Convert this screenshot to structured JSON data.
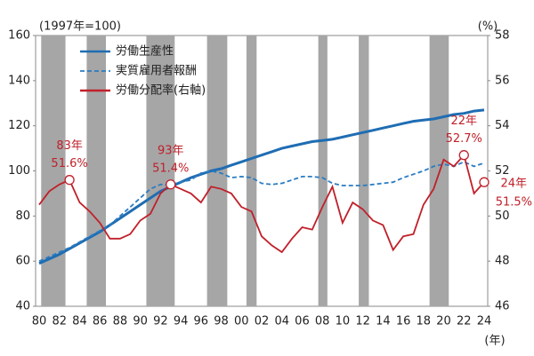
{
  "chart_data": {
    "type": "line",
    "y_label": "(1997年=100)",
    "y2_label": "(%)",
    "x_label": "(年)",
    "categories": [
      "80",
      null,
      "82",
      null,
      "84",
      null,
      "86",
      null,
      "88",
      null,
      "90",
      null,
      "92",
      null,
      "94",
      null,
      "96",
      null,
      "98",
      null,
      "00",
      null,
      "02",
      null,
      "04",
      null,
      "06",
      null,
      "08",
      null,
      "10",
      null,
      "12",
      null,
      "14",
      null,
      "16",
      null,
      "18",
      null,
      "20",
      null,
      "22",
      null,
      "24"
    ],
    "ylim": [
      40,
      160
    ],
    "yticks": [
      40,
      60,
      80,
      100,
      120,
      140,
      160
    ],
    "y2lim": [
      46,
      58
    ],
    "y2ticks": [
      46,
      48,
      50,
      52,
      54,
      56,
      58
    ],
    "legend": "upper left",
    "shade_color": "#a6a6a6",
    "shaded_spans": [
      [
        0.2,
        2.6
      ],
      [
        4.7,
        6.6
      ],
      [
        10.6,
        13.4
      ],
      [
        16.6,
        18.6
      ],
      [
        20.5,
        21.5
      ],
      [
        27.6,
        28.5
      ],
      [
        31.6,
        32.6
      ],
      [
        38.6,
        40.5
      ]
    ],
    "series": [
      {
        "name": "労働生産性",
        "color": "#1f6db3",
        "style": "solid",
        "values": [
          59,
          61,
          63,
          65.5,
          68,
          70.5,
          73,
          76,
          79,
          82,
          85,
          88,
          91,
          93,
          95,
          97,
          98.5,
          100,
          101,
          102.5,
          104,
          105.5,
          107,
          108.5,
          110,
          111,
          112,
          113,
          113.5,
          114,
          115,
          116,
          117,
          118,
          119,
          120,
          121,
          122,
          122.5,
          123,
          124,
          125,
          125.5,
          126.5,
          127
        ]
      },
      {
        "name": "実質雇用者報酬",
        "color": "#2a7cc2",
        "style": "dashed",
        "values": [
          60,
          62,
          64,
          66,
          68.5,
          71,
          73.5,
          76,
          80,
          84,
          88,
          92,
          94,
          94,
          95,
          96,
          99,
          100,
          99,
          97,
          97.5,
          97,
          94.5,
          94,
          94.5,
          96,
          97.5,
          97.5,
          97,
          94.5,
          93.5,
          93.5,
          93.5,
          94,
          94.5,
          95,
          97,
          98.5,
          100,
          102,
          103,
          102,
          104,
          102,
          103.5
        ]
      },
      {
        "name": "労働分配率(右軸)",
        "color": "#c0202a",
        "style": "solid",
        "axis": "y2",
        "values": [
          50.5,
          51.1,
          51.4,
          51.6,
          50.6,
          50.2,
          49.7,
          49.0,
          49.0,
          49.2,
          49.8,
          50.1,
          51.0,
          51.4,
          51.2,
          51.0,
          50.6,
          51.3,
          51.2,
          51.0,
          50.4,
          50.2,
          49.1,
          48.7,
          48.4,
          49.0,
          49.5,
          49.4,
          50.4,
          51.3,
          49.7,
          50.6,
          50.3,
          49.8,
          49.6,
          48.5,
          49.1,
          49.2,
          50.5,
          51.2,
          52.5,
          52.2,
          52.7,
          51.0,
          51.5
        ],
        "point_labels": [
          null,
          null,
          null,
          "83年",
          null,
          null,
          null,
          null,
          null,
          null,
          null,
          null,
          null,
          "93年",
          null,
          null,
          null,
          null,
          null,
          null,
          null,
          null,
          null,
          null,
          null,
          null,
          null,
          null,
          null,
          null,
          null,
          null,
          null,
          null,
          null,
          null,
          null,
          null,
          null,
          null,
          null,
          null,
          "22年",
          null,
          "24年"
        ],
        "value_labels": [
          null,
          null,
          null,
          "51.6%",
          null,
          null,
          null,
          null,
          null,
          null,
          null,
          null,
          null,
          "51.4%",
          null,
          null,
          null,
          null,
          null,
          null,
          null,
          null,
          null,
          null,
          null,
          null,
          null,
          null,
          null,
          null,
          null,
          null,
          null,
          null,
          null,
          null,
          null,
          null,
          null,
          null,
          null,
          null,
          "52.7%",
          null,
          "51.5%"
        ]
      }
    ]
  }
}
